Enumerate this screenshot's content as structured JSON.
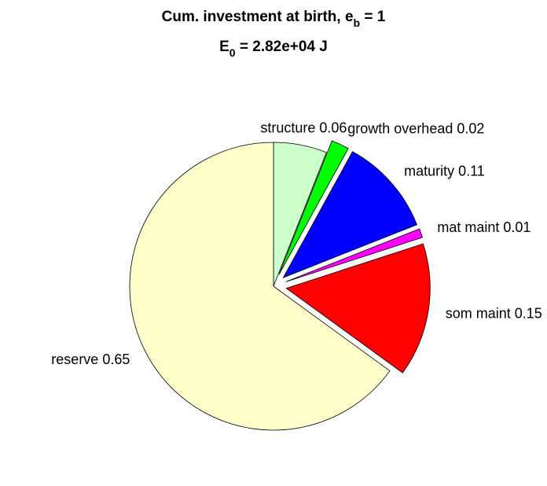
{
  "chart_data": {
    "type": "pie",
    "title": {
      "text": "Cum. investment at birth, e",
      "sub": "b",
      "after": " = 1"
    },
    "subtitle": {
      "text": "E",
      "sub": "0",
      "after": " = 2.82e+04 J"
    },
    "categories": [
      "structure",
      "growth overhead",
      "maturity",
      "mat maint",
      "som maint",
      "reserve"
    ],
    "values": [
      0.06,
      0.02,
      0.11,
      0.01,
      0.15,
      0.65
    ],
    "colors": [
      "#ccffcc",
      "#00ff00",
      "#0000ff",
      "#ff00ff",
      "#ff0000",
      "#ffffcc"
    ],
    "explode": [
      false,
      true,
      true,
      true,
      true,
      false
    ]
  }
}
